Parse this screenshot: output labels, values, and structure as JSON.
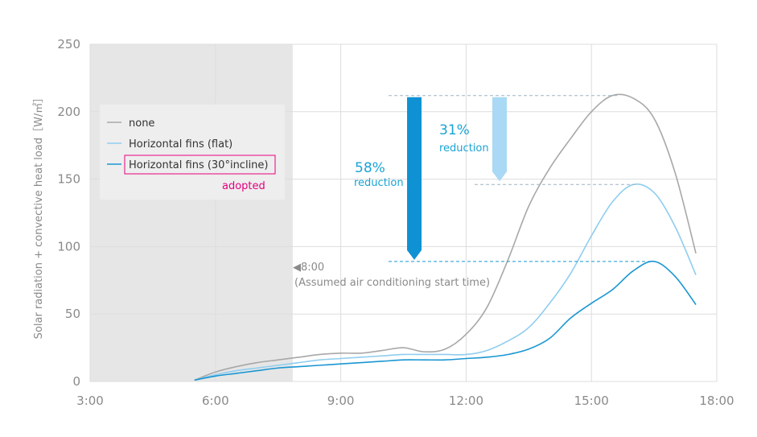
{
  "chart_data": {
    "type": "line",
    "title": "",
    "xlabel": "",
    "ylabel": "Solar radiation + convective heat load［W/㎡］",
    "xlim": [
      3,
      18
    ],
    "ylim": [
      0,
      250
    ],
    "xticks": [
      {
        "v": 3,
        "label": "3:00"
      },
      {
        "v": 6,
        "label": "6:00"
      },
      {
        "v": 9,
        "label": "9:00"
      },
      {
        "v": 12,
        "label": "12:00"
      },
      {
        "v": 15,
        "label": "15:00"
      },
      {
        "v": 18,
        "label": "18:00"
      }
    ],
    "yticks": [
      {
        "v": 0,
        "label": "0"
      },
      {
        "v": 50,
        "label": "50"
      },
      {
        "v": 100,
        "label": "100"
      },
      {
        "v": 150,
        "label": "150"
      },
      {
        "v": 200,
        "label": "200"
      },
      {
        "v": 250,
        "label": "250"
      }
    ],
    "grid": true,
    "legend_position": "top-left",
    "shaded_region": {
      "x_start": 3,
      "x_end": 7.85
    },
    "series": [
      {
        "name": "none",
        "color": "#a8a8a8",
        "points": [
          [
            5.5,
            1
          ],
          [
            6,
            7
          ],
          [
            6.5,
            11
          ],
          [
            7,
            14
          ],
          [
            7.5,
            16
          ],
          [
            8,
            18
          ],
          [
            8.5,
            20
          ],
          [
            9,
            21
          ],
          [
            9.5,
            21
          ],
          [
            10,
            23
          ],
          [
            10.5,
            25
          ],
          [
            11,
            22
          ],
          [
            11.5,
            24
          ],
          [
            12,
            35
          ],
          [
            12.5,
            55
          ],
          [
            13,
            90
          ],
          [
            13.5,
            130
          ],
          [
            14,
            158
          ],
          [
            14.5,
            180
          ],
          [
            15,
            200
          ],
          [
            15.5,
            212
          ],
          [
            16,
            210
          ],
          [
            16.5,
            195
          ],
          [
            17,
            155
          ],
          [
            17.5,
            95
          ]
        ]
      },
      {
        "name": "Horizontal fins (flat)",
        "color": "#8fcdef",
        "points": [
          [
            5.5,
            1
          ],
          [
            6,
            5
          ],
          [
            6.5,
            8
          ],
          [
            7,
            10
          ],
          [
            7.5,
            12
          ],
          [
            8,
            14
          ],
          [
            8.5,
            16
          ],
          [
            9,
            17
          ],
          [
            9.5,
            18
          ],
          [
            10,
            19
          ],
          [
            10.5,
            20
          ],
          [
            11,
            20
          ],
          [
            11.5,
            20
          ],
          [
            12,
            20
          ],
          [
            12.5,
            23
          ],
          [
            13,
            30
          ],
          [
            13.5,
            40
          ],
          [
            14,
            58
          ],
          [
            14.5,
            80
          ],
          [
            15,
            108
          ],
          [
            15.5,
            133
          ],
          [
            16,
            146
          ],
          [
            16.5,
            140
          ],
          [
            17,
            115
          ],
          [
            17.5,
            79
          ]
        ]
      },
      {
        "name": "Horizontal fins (30°incline)",
        "color": "#1a96d2",
        "points": [
          [
            5.5,
            1
          ],
          [
            6,
            4
          ],
          [
            6.5,
            6
          ],
          [
            7,
            8
          ],
          [
            7.5,
            10
          ],
          [
            8,
            11
          ],
          [
            8.5,
            12
          ],
          [
            9,
            13
          ],
          [
            9.5,
            14
          ],
          [
            10,
            15
          ],
          [
            10.5,
            16
          ],
          [
            11,
            16
          ],
          [
            11.5,
            16
          ],
          [
            12,
            17
          ],
          [
            12.5,
            18
          ],
          [
            13,
            20
          ],
          [
            13.5,
            24
          ],
          [
            14,
            32
          ],
          [
            14.5,
            47
          ],
          [
            15,
            58
          ],
          [
            15.5,
            68
          ],
          [
            16,
            82
          ],
          [
            16.5,
            89
          ],
          [
            17,
            78
          ],
          [
            17.5,
            57
          ]
        ]
      }
    ],
    "annotations": {
      "adopted": "adopted",
      "start_marker": "◀8:00",
      "start_note": "(Assumed air conditioning start time)",
      "reduction_58": {
        "percent": "58%",
        "label": "reduction",
        "from": 212,
        "to": 89,
        "color": "#0f92d4"
      },
      "reduction_31": {
        "percent": "31%",
        "label": "reduction",
        "from": 212,
        "to": 146,
        "color": "#a9d9f4"
      }
    }
  }
}
